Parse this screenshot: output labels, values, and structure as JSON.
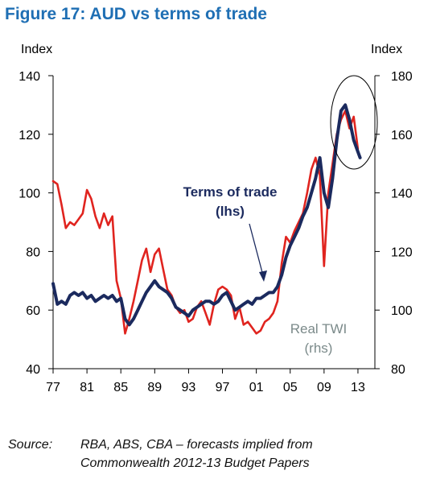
{
  "title": "Figure 17:  AUD vs terms of trade",
  "source": {
    "label": "Source:",
    "line1": "RBA, ABS, CBA – forecasts implied from",
    "line2": "Commonwealth 2012-13 Budget Papers"
  },
  "chart_data": {
    "type": "line",
    "left_axis": {
      "label": "Index",
      "min": 40,
      "max": 140,
      "ticks": [
        140,
        120,
        100,
        80,
        60,
        40
      ]
    },
    "right_axis": {
      "label": "Index",
      "min": 80,
      "max": 180,
      "ticks": [
        180,
        160,
        140,
        120,
        100,
        80
      ]
    },
    "x_axis": {
      "min": 1977,
      "max": 2015,
      "tick_labels": [
        "77",
        "81",
        "85",
        "89",
        "93",
        "97",
        "01",
        "05",
        "09",
        "13"
      ],
      "tick_values": [
        1977,
        1981,
        1985,
        1989,
        1993,
        1997,
        2001,
        2005,
        2009,
        2013
      ]
    },
    "grid": false,
    "series": [
      {
        "name": "Terms of trade",
        "axis_label": "(lhs)",
        "axis": "left",
        "color": "#1b2a5e",
        "x": [
          1977,
          1977.5,
          1978,
          1978.5,
          1979,
          1979.5,
          1980,
          1980.5,
          1981,
          1981.5,
          1982,
          1982.5,
          1983,
          1983.5,
          1984,
          1984.5,
          1985,
          1985.5,
          1986,
          1986.5,
          1987,
          1987.5,
          1988,
          1988.5,
          1989,
          1989.5,
          1990,
          1990.5,
          1991,
          1991.5,
          1992,
          1992.5,
          1993,
          1993.5,
          1994,
          1994.5,
          1995,
          1995.5,
          1996,
          1996.5,
          1997,
          1997.5,
          1998,
          1998.5,
          1999,
          1999.5,
          2000,
          2000.5,
          2001,
          2001.5,
          2002,
          2002.5,
          2003,
          2003.5,
          2004,
          2004.5,
          2005,
          2005.5,
          2006,
          2006.5,
          2007,
          2007.5,
          2008,
          2008.5,
          2009,
          2009.5,
          2010,
          2010.5,
          2011,
          2011.5,
          2012,
          2012.5,
          2013,
          2013.25
        ],
        "y": [
          69,
          62,
          63,
          62,
          65,
          66,
          65,
          66,
          64,
          65,
          63,
          64,
          65,
          64,
          65,
          63,
          64,
          57,
          55,
          57,
          60,
          63,
          66,
          68,
          70,
          68,
          67,
          66,
          64,
          61,
          60,
          59,
          58,
          60,
          61,
          62,
          63,
          63,
          62,
          63,
          65,
          66,
          63,
          60,
          61,
          62,
          63,
          62,
          64,
          64,
          65,
          66,
          66,
          68,
          72,
          78,
          82,
          85,
          88,
          92,
          95,
          100,
          105,
          112,
          100,
          95,
          105,
          118,
          128,
          130,
          125,
          118,
          114,
          112
        ]
      },
      {
        "name": "Real TWI",
        "axis_label": "(rhs)",
        "axis": "right",
        "color": "#e0241f",
        "x": [
          1977,
          1977.5,
          1978,
          1978.5,
          1979,
          1979.5,
          1980,
          1980.5,
          1981,
          1981.5,
          1982,
          1982.5,
          1983,
          1983.5,
          1984,
          1984.5,
          1985,
          1985.5,
          1986,
          1986.5,
          1987,
          1987.5,
          1988,
          1988.5,
          1989,
          1989.5,
          1990,
          1990.5,
          1991,
          1991.5,
          1992,
          1992.5,
          1993,
          1993.5,
          1994,
          1994.5,
          1995,
          1995.5,
          1996,
          1996.5,
          1997,
          1997.5,
          1998,
          1998.5,
          1999,
          1999.5,
          2000,
          2000.5,
          2001,
          2001.5,
          2002,
          2002.5,
          2003,
          2003.5,
          2004,
          2004.5,
          2005,
          2005.5,
          2006,
          2006.5,
          2007,
          2007.5,
          2008,
          2008.5,
          2009,
          2009.5,
          2010,
          2010.5,
          2011,
          2011.5,
          2012,
          2012.5,
          2013
        ],
        "y": [
          144,
          143,
          136,
          128,
          130,
          129,
          131,
          133,
          141,
          138,
          132,
          128,
          133,
          129,
          132,
          110,
          104,
          92,
          97,
          103,
          110,
          117,
          121,
          113,
          119,
          121,
          114,
          107,
          105,
          101,
          99,
          100,
          96,
          97,
          101,
          103,
          99,
          95,
          102,
          107,
          108,
          107,
          105,
          97,
          101,
          95,
          96,
          94,
          92,
          93,
          96,
          97,
          99,
          103,
          116,
          125,
          123,
          127,
          130,
          133,
          140,
          148,
          152,
          146,
          115,
          140,
          150,
          160,
          165,
          168,
          162,
          166,
          155
        ],
        "annotation": "circled 2011-2013 peak"
      }
    ]
  }
}
